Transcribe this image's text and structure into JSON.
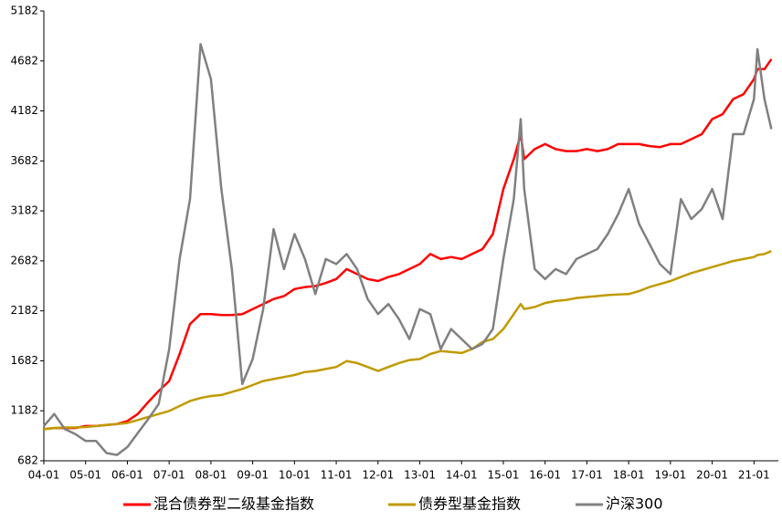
{
  "chart_data": {
    "type": "line",
    "x": [
      "2004-01",
      "2004-04",
      "2004-07",
      "2004-10",
      "2005-01",
      "2005-04",
      "2005-07",
      "2005-10",
      "2006-01",
      "2006-04",
      "2006-07",
      "2006-10",
      "2007-01",
      "2007-04",
      "2007-07",
      "2007-10",
      "2008-01",
      "2008-04",
      "2008-07",
      "2008-10",
      "2009-01",
      "2009-04",
      "2009-07",
      "2009-10",
      "2010-01",
      "2010-04",
      "2010-07",
      "2010-10",
      "2011-01",
      "2011-04",
      "2011-07",
      "2011-10",
      "2012-01",
      "2012-04",
      "2012-07",
      "2012-10",
      "2013-01",
      "2013-04",
      "2013-07",
      "2013-10",
      "2014-01",
      "2014-04",
      "2014-07",
      "2014-10",
      "2015-01",
      "2015-04",
      "2015-06",
      "2015-07",
      "2015-10",
      "2016-01",
      "2016-04",
      "2016-07",
      "2016-10",
      "2017-01",
      "2017-04",
      "2017-07",
      "2017-10",
      "2018-01",
      "2018-04",
      "2018-07",
      "2018-10",
      "2019-01",
      "2019-04",
      "2019-07",
      "2019-10",
      "2020-01",
      "2020-04",
      "2020-07",
      "2020-10",
      "2021-01",
      "2021-02",
      "2021-04",
      "2021-06"
    ],
    "series": [
      {
        "name": "混合债券型二级基金指数",
        "color": "#ff0000",
        "values": [
          1000,
          1010,
          1010,
          1010,
          1030,
          1030,
          1040,
          1050,
          1080,
          1150,
          1270,
          1380,
          1480,
          1750,
          2050,
          2150,
          2150,
          2140,
          2140,
          2150,
          2200,
          2250,
          2300,
          2330,
          2400,
          2420,
          2430,
          2460,
          2500,
          2600,
          2550,
          2500,
          2480,
          2520,
          2550,
          2600,
          2650,
          2750,
          2700,
          2720,
          2700,
          2750,
          2800,
          2950,
          3400,
          3700,
          3950,
          3700,
          3800,
          3850,
          3800,
          3780,
          3780,
          3800,
          3780,
          3800,
          3850,
          3850,
          3850,
          3830,
          3820,
          3850,
          3850,
          3900,
          3950,
          4100,
          4150,
          4300,
          4350,
          4500,
          4600,
          4600,
          4700
        ]
      },
      {
        "name": "债券型基金指数",
        "color": "#c09a00",
        "values": [
          1000,
          1010,
          1015,
          1015,
          1020,
          1030,
          1040,
          1050,
          1060,
          1090,
          1120,
          1150,
          1180,
          1230,
          1280,
          1310,
          1330,
          1340,
          1370,
          1400,
          1440,
          1480,
          1500,
          1520,
          1540,
          1570,
          1580,
          1600,
          1620,
          1680,
          1660,
          1620,
          1580,
          1620,
          1660,
          1690,
          1700,
          1750,
          1780,
          1770,
          1760,
          1800,
          1870,
          1900,
          2000,
          2150,
          2250,
          2200,
          2220,
          2260,
          2280,
          2290,
          2310,
          2320,
          2330,
          2340,
          2345,
          2350,
          2380,
          2420,
          2450,
          2480,
          2520,
          2560,
          2590,
          2620,
          2650,
          2680,
          2700,
          2720,
          2740,
          2750,
          2780
        ]
      },
      {
        "name": "沪深300",
        "color": "#808080",
        "values": [
          1030,
          1150,
          1000,
          950,
          880,
          880,
          760,
          740,
          820,
          960,
          1100,
          1250,
          1800,
          2700,
          3300,
          4850,
          4500,
          3400,
          2600,
          1450,
          1700,
          2200,
          3000,
          2600,
          2950,
          2700,
          2350,
          2700,
          2650,
          2750,
          2600,
          2300,
          2150,
          2250,
          2100,
          1900,
          2200,
          2150,
          1800,
          2000,
          1900,
          1800,
          1850,
          2000,
          2700,
          3300,
          4100,
          3400,
          2600,
          2500,
          2600,
          2550,
          2700,
          2750,
          2800,
          2950,
          3150,
          3400,
          3050,
          2850,
          2650,
          2550,
          3300,
          3100,
          3200,
          3400,
          3100,
          3950,
          3950,
          4300,
          4800,
          4300,
          4000
        ]
      }
    ],
    "xlim": [
      "2004-01",
      "2021-08"
    ],
    "xticks": [
      {
        "value": "2004-01",
        "label": "04-01"
      },
      {
        "value": "2005-01",
        "label": "05-01"
      },
      {
        "value": "2006-01",
        "label": "06-01"
      },
      {
        "value": "2007-01",
        "label": "07-01"
      },
      {
        "value": "2008-01",
        "label": "08-01"
      },
      {
        "value": "2009-01",
        "label": "09-01"
      },
      {
        "value": "2010-01",
        "label": "10-01"
      },
      {
        "value": "2011-01",
        "label": "11-01"
      },
      {
        "value": "2012-01",
        "label": "12-01"
      },
      {
        "value": "2013-01",
        "label": "13-01"
      },
      {
        "value": "2014-01",
        "label": "14-01"
      },
      {
        "value": "2015-01",
        "label": "15-01"
      },
      {
        "value": "2016-01",
        "label": "16-01"
      },
      {
        "value": "2017-01",
        "label": "17-01"
      },
      {
        "value": "2018-01",
        "label": "18-01"
      },
      {
        "value": "2019-01",
        "label": "19-01"
      },
      {
        "value": "2020-01",
        "label": "20-01"
      },
      {
        "value": "2021-01",
        "label": "21-01"
      }
    ],
    "ylim": [
      682,
      5182
    ],
    "yticks": [
      682,
      1182,
      1682,
      2182,
      2682,
      3182,
      3682,
      4182,
      4682,
      5182
    ],
    "grid": false,
    "legend": "bottom"
  }
}
